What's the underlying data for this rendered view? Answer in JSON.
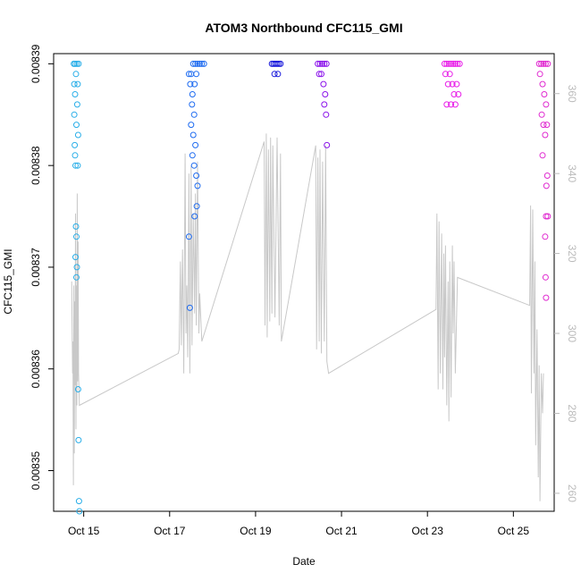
{
  "chart_data": {
    "type": "scatter",
    "title": "ATOM3 Northbound CFC115_GMI",
    "xlabel": "Date",
    "ylabel": "CFC115_GMI",
    "x_date_ticks": [
      "Oct 15",
      "Oct 17",
      "Oct 19",
      "Oct 21",
      "Oct 23",
      "Oct 25"
    ],
    "x_date_tick_days": [
      15,
      17,
      19,
      21,
      23,
      25
    ],
    "xlim_days": [
      14.3,
      25.95
    ],
    "ylim": [
      0.008346,
      0.008391
    ],
    "yticks": [
      "0.00835",
      "0.00836",
      "0.00837",
      "0.00838",
      "0.00839"
    ],
    "ytick_values": [
      0.00835,
      0.00836,
      0.00837,
      0.00838,
      0.00839
    ],
    "y2lim": [
      255.5,
      370
    ],
    "y2ticks": [
      "260",
      "280",
      "300",
      "320",
      "340",
      "360"
    ],
    "y2tick_values": [
      260,
      280,
      300,
      320,
      340,
      360
    ],
    "series": [
      {
        "type": "points",
        "color_scale": [
          "#29aee8",
          "#1e6bf0",
          "#1a1adb",
          "#8a12ea",
          "#e81ee8",
          "#e02ad0"
        ],
        "flights": [
          {
            "color": "#29aee8",
            "points": [
              [
                14.77,
                0.00839
              ],
              [
                14.8,
                0.00839
              ],
              [
                14.84,
                0.00839
              ],
              [
                14.88,
                0.00839
              ],
              [
                14.78,
                0.008388
              ],
              [
                14.82,
                0.008389
              ],
              [
                14.86,
                0.008388
              ],
              [
                14.8,
                0.008387
              ],
              [
                14.85,
                0.008386
              ],
              [
                14.78,
                0.008385
              ],
              [
                14.83,
                0.008384
              ],
              [
                14.87,
                0.008383
              ],
              [
                14.79,
                0.008382
              ],
              [
                14.8,
                0.008381
              ],
              [
                14.81,
                0.00838
              ],
              [
                14.86,
                0.00838
              ],
              [
                14.82,
                0.008374
              ],
              [
                14.83,
                0.008373
              ],
              [
                14.81,
                0.008371
              ],
              [
                14.84,
                0.00837
              ],
              [
                14.83,
                0.008369
              ],
              [
                14.87,
                0.008358
              ],
              [
                14.88,
                0.008353
              ],
              [
                14.89,
                0.008347
              ],
              [
                14.9,
                0.008346
              ]
            ]
          },
          {
            "color": "#1e6bf0",
            "points": [
              [
                17.45,
                0.008389
              ],
              [
                17.5,
                0.008389
              ],
              [
                17.55,
                0.00839
              ],
              [
                17.6,
                0.00839
              ],
              [
                17.65,
                0.00839
              ],
              [
                17.7,
                0.00839
              ],
              [
                17.75,
                0.00839
              ],
              [
                17.8,
                0.00839
              ],
              [
                17.48,
                0.008388
              ],
              [
                17.53,
                0.008387
              ],
              [
                17.58,
                0.008388
              ],
              [
                17.62,
                0.008389
              ],
              [
                17.52,
                0.008386
              ],
              [
                17.57,
                0.008385
              ],
              [
                17.5,
                0.008384
              ],
              [
                17.55,
                0.008383
              ],
              [
                17.6,
                0.008382
              ],
              [
                17.53,
                0.008381
              ],
              [
                17.57,
                0.00838
              ],
              [
                17.62,
                0.008379
              ],
              [
                17.65,
                0.008378
              ],
              [
                17.63,
                0.008376
              ],
              [
                17.45,
                0.008373
              ],
              [
                17.47,
                0.008366
              ],
              [
                17.58,
                0.008375
              ]
            ]
          },
          {
            "color": "#1a1adb",
            "points": [
              [
                19.38,
                0.00839
              ],
              [
                19.42,
                0.00839
              ],
              [
                19.46,
                0.00839
              ],
              [
                19.5,
                0.00839
              ],
              [
                19.54,
                0.00839
              ],
              [
                19.58,
                0.00839
              ],
              [
                19.44,
                0.008389
              ],
              [
                19.52,
                0.008389
              ]
            ]
          },
          {
            "color": "#8a12ea",
            "points": [
              [
                20.45,
                0.00839
              ],
              [
                20.5,
                0.00839
              ],
              [
                20.55,
                0.00839
              ],
              [
                20.6,
                0.00839
              ],
              [
                20.65,
                0.00839
              ],
              [
                20.48,
                0.008389
              ],
              [
                20.53,
                0.008389
              ],
              [
                20.58,
                0.008388
              ],
              [
                20.62,
                0.008387
              ],
              [
                20.6,
                0.008386
              ],
              [
                20.64,
                0.008385
              ],
              [
                20.66,
                0.008382
              ]
            ]
          },
          {
            "color": "#e81ee8",
            "points": [
              [
                23.4,
                0.00839
              ],
              [
                23.45,
                0.00839
              ],
              [
                23.5,
                0.00839
              ],
              [
                23.55,
                0.00839
              ],
              [
                23.6,
                0.00839
              ],
              [
                23.65,
                0.00839
              ],
              [
                23.7,
                0.00839
              ],
              [
                23.75,
                0.00839
              ],
              [
                23.42,
                0.008389
              ],
              [
                23.48,
                0.008388
              ],
              [
                23.52,
                0.008389
              ],
              [
                23.58,
                0.008388
              ],
              [
                23.62,
                0.008387
              ],
              [
                23.68,
                0.008388
              ],
              [
                23.45,
                0.008386
              ],
              [
                23.55,
                0.008386
              ],
              [
                23.65,
                0.008386
              ],
              [
                23.72,
                0.008387
              ]
            ]
          },
          {
            "color": "#e02ad0",
            "points": [
              [
                25.6,
                0.00839
              ],
              [
                25.65,
                0.00839
              ],
              [
                25.7,
                0.00839
              ],
              [
                25.75,
                0.00839
              ],
              [
                25.8,
                0.00839
              ],
              [
                25.62,
                0.008389
              ],
              [
                25.68,
                0.008388
              ],
              [
                25.72,
                0.008387
              ],
              [
                25.76,
                0.008386
              ],
              [
                25.66,
                0.008385
              ],
              [
                25.7,
                0.008384
              ],
              [
                25.74,
                0.008383
              ],
              [
                25.78,
                0.008384
              ],
              [
                25.68,
                0.008381
              ],
              [
                25.79,
                0.008379
              ],
              [
                25.77,
                0.008378
              ],
              [
                25.76,
                0.008375
              ],
              [
                25.8,
                0.008375
              ],
              [
                25.74,
                0.008373
              ],
              [
                25.75,
                0.008369
              ],
              [
                25.76,
                0.008367
              ]
            ]
          }
        ]
      },
      {
        "type": "line",
        "axis": "right",
        "color": "#c8c8c8",
        "points": [
          [
            14.72,
            313
          ],
          [
            14.74,
            290
          ],
          [
            14.75,
            298
          ],
          [
            14.76,
            262
          ],
          [
            14.77,
            312
          ],
          [
            14.78,
            270
          ],
          [
            14.79,
            308
          ],
          [
            14.8,
            287
          ],
          [
            14.81,
            330
          ],
          [
            14.82,
            276
          ],
          [
            14.83,
            312
          ],
          [
            14.84,
            282
          ],
          [
            14.85,
            335
          ],
          [
            14.86,
            288
          ],
          [
            14.87,
            323
          ],
          [
            14.88,
            290
          ],
          [
            14.9,
            282
          ],
          [
            17.2,
            295
          ],
          [
            17.22,
            296
          ],
          [
            17.25,
            318
          ],
          [
            17.27,
            297
          ],
          [
            17.3,
            321
          ],
          [
            17.33,
            290
          ],
          [
            17.36,
            345
          ],
          [
            17.38,
            300
          ],
          [
            17.4,
            312
          ],
          [
            17.42,
            294
          ],
          [
            17.45,
            340
          ],
          [
            17.47,
            290
          ],
          [
            17.5,
            342
          ],
          [
            17.52,
            297
          ],
          [
            17.55,
            330
          ],
          [
            17.58,
            305
          ],
          [
            17.6,
            335
          ],
          [
            17.62,
            302
          ],
          [
            17.65,
            343
          ],
          [
            17.68,
            300
          ],
          [
            17.7,
            310
          ],
          [
            17.75,
            298
          ],
          [
            19.2,
            348
          ],
          [
            19.22,
            302
          ],
          [
            19.25,
            350
          ],
          [
            19.27,
            299
          ],
          [
            19.3,
            346
          ],
          [
            19.33,
            303
          ],
          [
            19.35,
            349
          ],
          [
            19.38,
            305
          ],
          [
            19.4,
            347
          ],
          [
            19.45,
            304
          ],
          [
            19.5,
            349
          ],
          [
            19.55,
            302
          ],
          [
            19.58,
            345
          ],
          [
            19.6,
            298
          ],
          [
            20.4,
            347
          ],
          [
            20.42,
            296
          ],
          [
            20.45,
            344
          ],
          [
            20.48,
            298
          ],
          [
            20.5,
            346
          ],
          [
            20.53,
            295
          ],
          [
            20.56,
            343
          ],
          [
            20.6,
            298
          ],
          [
            20.63,
            347
          ],
          [
            20.66,
            293
          ],
          [
            20.7,
            290
          ],
          [
            23.2,
            306
          ],
          [
            23.22,
            330
          ],
          [
            23.25,
            286
          ],
          [
            23.27,
            328
          ],
          [
            23.3,
            290
          ],
          [
            23.33,
            325
          ],
          [
            23.36,
            286
          ],
          [
            23.38,
            320
          ],
          [
            23.4,
            294
          ],
          [
            23.42,
            322
          ],
          [
            23.45,
            282
          ],
          [
            23.48,
            313
          ],
          [
            23.5,
            278
          ],
          [
            23.52,
            318
          ],
          [
            23.55,
            284
          ],
          [
            23.58,
            322
          ],
          [
            23.6,
            300
          ],
          [
            23.62,
            318
          ],
          [
            23.65,
            290
          ],
          [
            23.68,
            305
          ],
          [
            23.7,
            314
          ],
          [
            25.38,
            307
          ],
          [
            25.4,
            332
          ],
          [
            25.42,
            285
          ],
          [
            25.45,
            331
          ],
          [
            25.48,
            290
          ],
          [
            25.5,
            318
          ],
          [
            25.52,
            272
          ],
          [
            25.55,
            301
          ],
          [
            25.58,
            264
          ],
          [
            25.6,
            292
          ],
          [
            25.62,
            258
          ],
          [
            25.65,
            290
          ],
          [
            25.68,
            280
          ],
          [
            25.7,
            290
          ]
        ]
      }
    ],
    "grid": false,
    "legend": "none"
  }
}
